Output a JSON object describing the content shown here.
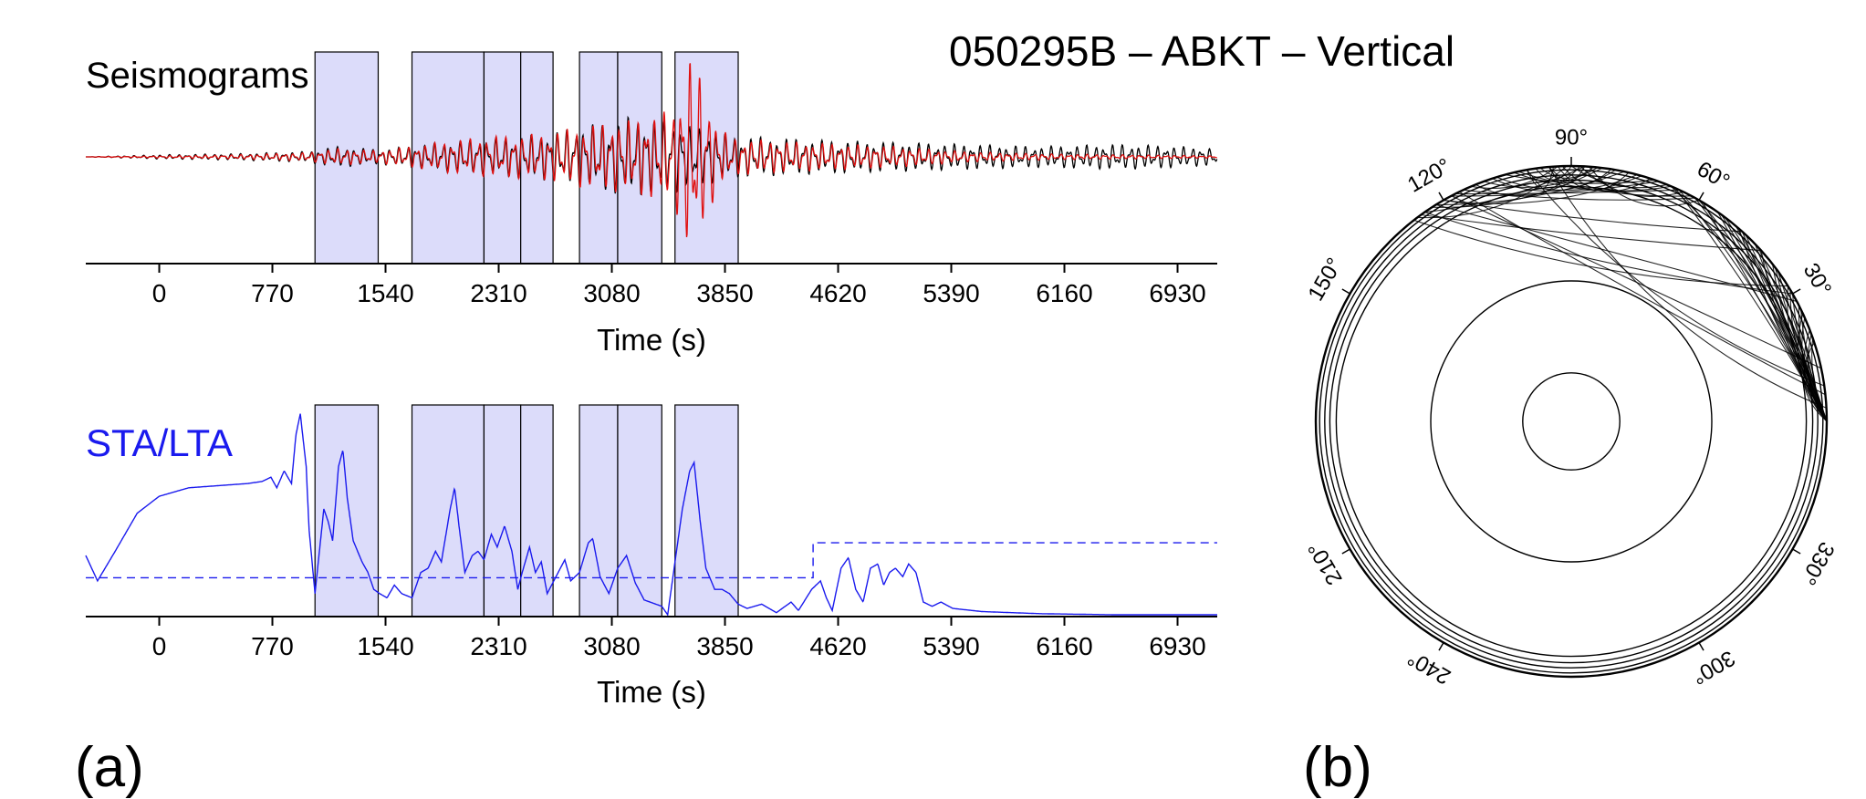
{
  "figure": {
    "title": "050295B – ABKT – Vertical",
    "panel_a_label": "(a)",
    "panel_b_label": "(b)"
  },
  "colors": {
    "window_fill": "#dcdcfa",
    "observed": "#000000",
    "synthetic": "#e01010",
    "sta_lta": "#1a1aee",
    "axis": "#000000"
  },
  "chart_data": [
    {
      "type": "line",
      "title": "Seismograms",
      "xlabel": "Time (s)",
      "xlim": [
        -500,
        7200
      ],
      "ylim": [
        -1,
        1
      ],
      "xticks": [
        0,
        770,
        1540,
        2310,
        3080,
        3850,
        4620,
        5390,
        6160,
        6930
      ],
      "windows": [
        [
          1060,
          1490
        ],
        [
          1720,
          2210
        ],
        [
          2210,
          2460
        ],
        [
          2460,
          2680
        ],
        [
          2860,
          3120
        ],
        [
          3120,
          3420
        ],
        [
          3510,
          3940
        ]
      ],
      "series": [
        {
          "key": "observed",
          "envelope": [
            [
              -500,
              0
            ],
            [
              0,
              0.02
            ],
            [
              500,
              0.03
            ],
            [
              1000,
              0.05
            ],
            [
              1200,
              0.1
            ],
            [
              1500,
              0.07
            ],
            [
              1800,
              0.12
            ],
            [
              2000,
              0.15
            ],
            [
              2300,
              0.18
            ],
            [
              2600,
              0.22
            ],
            [
              2900,
              0.3
            ],
            [
              3200,
              0.38
            ],
            [
              3500,
              0.35
            ],
            [
              3600,
              0.3
            ],
            [
              3700,
              0.28
            ],
            [
              3900,
              0.2
            ],
            [
              4200,
              0.18
            ],
            [
              4500,
              0.16
            ],
            [
              5000,
              0.14
            ],
            [
              5500,
              0.12
            ],
            [
              6000,
              0.1
            ],
            [
              6500,
              0.12
            ],
            [
              6800,
              0.11
            ],
            [
              7200,
              0.08
            ]
          ],
          "period_s": 60,
          "phase": 0.4
        },
        {
          "key": "synthetic",
          "envelope": [
            [
              -500,
              0
            ],
            [
              0,
              0.01
            ],
            [
              500,
              0.02
            ],
            [
              1000,
              0.04
            ],
            [
              1200,
              0.08
            ],
            [
              1500,
              0.06
            ],
            [
              1800,
              0.12
            ],
            [
              2000,
              0.16
            ],
            [
              2300,
              0.2
            ],
            [
              2600,
              0.22
            ],
            [
              2900,
              0.3
            ],
            [
              3200,
              0.35
            ],
            [
              3500,
              0.45
            ],
            [
              3620,
              1.0
            ],
            [
              3700,
              0.7
            ],
            [
              3800,
              0.3
            ],
            [
              3900,
              0.18
            ],
            [
              4200,
              0.15
            ],
            [
              4500,
              0.13
            ],
            [
              5000,
              0.1
            ],
            [
              5500,
              0.05
            ],
            [
              6000,
              0.03
            ],
            [
              7200,
              0.01
            ]
          ],
          "period_s": 60,
          "phase": 0.0
        }
      ]
    },
    {
      "type": "line",
      "title": "STA/LTA",
      "xlabel": "Time (s)",
      "xlim": [
        -500,
        7200
      ],
      "ylim": [
        0,
        1
      ],
      "xticks": [
        0,
        770,
        1540,
        2310,
        3080,
        3850,
        4620,
        5390,
        6160,
        6930
      ],
      "windows": [
        [
          1060,
          1490
        ],
        [
          1720,
          2210
        ],
        [
          2210,
          2460
        ],
        [
          2460,
          2680
        ],
        [
          2860,
          3120
        ],
        [
          3120,
          3420
        ],
        [
          3510,
          3940
        ]
      ],
      "sta_lta": [
        [
          -500,
          0.28
        ],
        [
          -420,
          0.16
        ],
        [
          -300,
          0.3
        ],
        [
          -150,
          0.48
        ],
        [
          0,
          0.56
        ],
        [
          200,
          0.6
        ],
        [
          400,
          0.61
        ],
        [
          600,
          0.62
        ],
        [
          700,
          0.63
        ],
        [
          760,
          0.65
        ],
        [
          800,
          0.6
        ],
        [
          850,
          0.68
        ],
        [
          900,
          0.62
        ],
        [
          930,
          0.85
        ],
        [
          960,
          0.95
        ],
        [
          1000,
          0.7
        ],
        [
          1020,
          0.4
        ],
        [
          1060,
          0.1
        ],
        [
          1090,
          0.3
        ],
        [
          1120,
          0.5
        ],
        [
          1150,
          0.44
        ],
        [
          1180,
          0.35
        ],
        [
          1220,
          0.7
        ],
        [
          1250,
          0.78
        ],
        [
          1280,
          0.55
        ],
        [
          1320,
          0.35
        ],
        [
          1380,
          0.25
        ],
        [
          1420,
          0.2
        ],
        [
          1460,
          0.12
        ],
        [
          1500,
          0.1
        ],
        [
          1550,
          0.08
        ],
        [
          1600,
          0.14
        ],
        [
          1650,
          0.1
        ],
        [
          1720,
          0.08
        ],
        [
          1780,
          0.2
        ],
        [
          1830,
          0.22
        ],
        [
          1880,
          0.3
        ],
        [
          1920,
          0.25
        ],
        [
          1980,
          0.5
        ],
        [
          2010,
          0.6
        ],
        [
          2040,
          0.42
        ],
        [
          2080,
          0.2
        ],
        [
          2130,
          0.28
        ],
        [
          2170,
          0.3
        ],
        [
          2210,
          0.26
        ],
        [
          2260,
          0.38
        ],
        [
          2300,
          0.32
        ],
        [
          2350,
          0.42
        ],
        [
          2400,
          0.3
        ],
        [
          2440,
          0.12
        ],
        [
          2470,
          0.2
        ],
        [
          2520,
          0.32
        ],
        [
          2560,
          0.2
        ],
        [
          2600,
          0.25
        ],
        [
          2640,
          0.1
        ],
        [
          2700,
          0.18
        ],
        [
          2760,
          0.26
        ],
        [
          2800,
          0.16
        ],
        [
          2860,
          0.2
        ],
        [
          2920,
          0.34
        ],
        [
          2950,
          0.36
        ],
        [
          3000,
          0.18
        ],
        [
          3060,
          0.1
        ],
        [
          3120,
          0.22
        ],
        [
          3180,
          0.28
        ],
        [
          3240,
          0.15
        ],
        [
          3300,
          0.07
        ],
        [
          3380,
          0.05
        ],
        [
          3420,
          0.04
        ],
        [
          3460,
          0.0
        ],
        [
          3510,
          0.25
        ],
        [
          3560,
          0.5
        ],
        [
          3610,
          0.68
        ],
        [
          3640,
          0.72
        ],
        [
          3680,
          0.45
        ],
        [
          3720,
          0.22
        ],
        [
          3780,
          0.12
        ],
        [
          3830,
          0.12
        ],
        [
          3880,
          0.1
        ],
        [
          3940,
          0.05
        ],
        [
          4000,
          0.03
        ],
        [
          4100,
          0.05
        ],
        [
          4200,
          0.01
        ],
        [
          4300,
          0.06
        ],
        [
          4350,
          0.02
        ],
        [
          4440,
          0.12
        ],
        [
          4500,
          0.16
        ],
        [
          4540,
          0.08
        ],
        [
          4580,
          0.02
        ],
        [
          4640,
          0.22
        ],
        [
          4690,
          0.27
        ],
        [
          4740,
          0.12
        ],
        [
          4790,
          0.06
        ],
        [
          4840,
          0.22
        ],
        [
          4890,
          0.24
        ],
        [
          4930,
          0.14
        ],
        [
          4970,
          0.2
        ],
        [
          5010,
          0.22
        ],
        [
          5060,
          0.18
        ],
        [
          5100,
          0.24
        ],
        [
          5150,
          0.2
        ],
        [
          5200,
          0.06
        ],
        [
          5260,
          0.04
        ],
        [
          5320,
          0.06
        ],
        [
          5400,
          0.03
        ],
        [
          5600,
          0.015
        ],
        [
          6000,
          0.005
        ],
        [
          6500,
          0.0
        ],
        [
          7200,
          0.0
        ]
      ],
      "threshold": [
        [
          -500,
          0.175
        ],
        [
          4450,
          0.175
        ],
        [
          4450,
          0.34
        ],
        [
          7200,
          0.34
        ]
      ]
    }
  ],
  "ray_plot": {
    "type": "polar",
    "angle_labels": [
      "90°",
      "60°",
      "30°",
      "330°",
      "300°",
      "240°",
      "210°",
      "150°",
      "120°"
    ],
    "angle_degrees": [
      90,
      60,
      30,
      330,
      300,
      240,
      210,
      150,
      120
    ],
    "ring_radii_fraction": [
      1.0,
      0.985,
      0.965,
      0.945,
      0.92,
      0.55,
      0.19
    ],
    "rays": {
      "epicentral_angle": 180,
      "receiver_angle_deg": 0,
      "bundle_a_start_deg": [
        95,
        110,
        125
      ],
      "bundle_b_start_deg": [
        20,
        40,
        62
      ],
      "outlier_start_deg": [
        130,
        120,
        95
      ]
    }
  }
}
